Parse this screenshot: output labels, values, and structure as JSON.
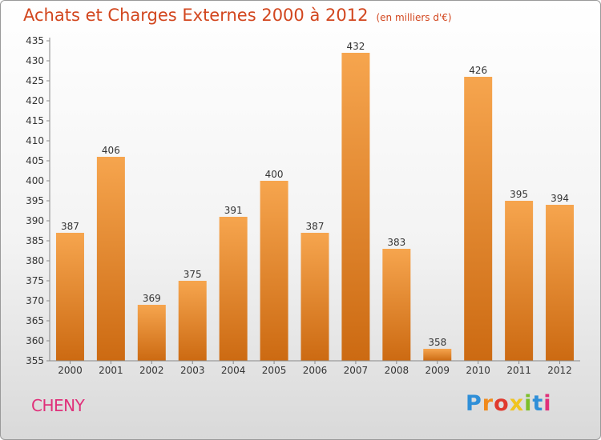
{
  "title": {
    "main": "Achats et Charges Externes 2000 à 2012",
    "sub": "(en milliers d'€)"
  },
  "commune": "CHENY",
  "logo": {
    "letters": [
      "P",
      "r",
      "o",
      "x",
      "i",
      "t",
      "i"
    ]
  },
  "colors": {
    "bar_light": "#f6a54e",
    "bar_dark": "#cc6a12",
    "title": "#d2461e",
    "commune": "#e0307a"
  },
  "chart_data": {
    "type": "bar",
    "categories": [
      "2000",
      "2001",
      "2002",
      "2003",
      "2004",
      "2005",
      "2006",
      "2007",
      "2008",
      "2009",
      "2010",
      "2011",
      "2012"
    ],
    "values": [
      387,
      406,
      369,
      375,
      391,
      400,
      387,
      432,
      383,
      358,
      426,
      395,
      394
    ],
    "ylim": [
      355,
      435
    ],
    "yticks": [
      355,
      360,
      365,
      370,
      375,
      380,
      385,
      390,
      395,
      400,
      405,
      410,
      415,
      420,
      425,
      430,
      435
    ],
    "grid": false,
    "legend": "none"
  }
}
